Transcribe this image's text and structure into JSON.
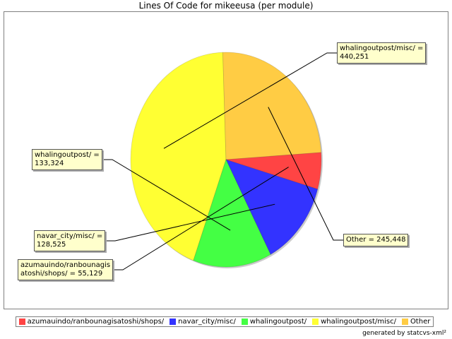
{
  "chart_data": {
    "type": "pie",
    "title": "Lines Of Code for mikeeusa (per module)",
    "slices": [
      {
        "name": "whalingoutpost/misc/",
        "value": 440251,
        "label": "whalingoutpost/misc/ =\n440,251",
        "color": "#ffff33"
      },
      {
        "name": "Other",
        "value": 245448,
        "label": "Other = 245,448",
        "color": "#ffcc44"
      },
      {
        "name": "azumauindo/ranbounagisatoshi/shops/",
        "value": 55129,
        "label": "azumauindo/ranbounagis\natoshi/shops/ = 55,129",
        "color": "#ff4444"
      },
      {
        "name": "navar_city/misc/",
        "value": 128525,
        "label": "navar_city/misc/ =\n128,525",
        "color": "#3333ff"
      },
      {
        "name": "whalingoutpost/",
        "value": 133324,
        "label": "whalingoutpost/ =\n133,324",
        "color": "#44ff44"
      }
    ],
    "legend": [
      {
        "label": "azumauindo/ranbounagisatoshi/shops/",
        "color": "#ff4444"
      },
      {
        "label": "navar_city/misc/",
        "color": "#3333ff"
      },
      {
        "label": "whalingoutpost/",
        "color": "#44ff44"
      },
      {
        "label": "whalingoutpost/misc/",
        "color": "#ffff33"
      },
      {
        "label": "Other",
        "color": "#ffcc44"
      }
    ],
    "legend_position": "bottom"
  },
  "footer": {
    "credit": "generated by statcvs-xml²"
  }
}
